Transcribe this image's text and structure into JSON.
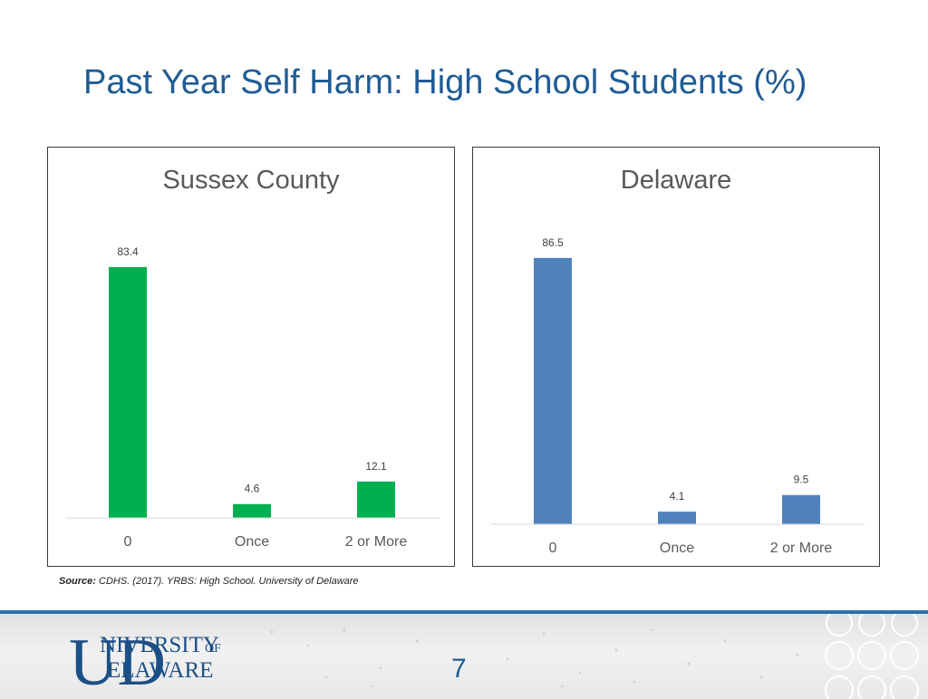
{
  "slide": {
    "title": "Past Year Self Harm: High School Students (%)",
    "source_prefix": "Source:",
    "source_text": " CDHS. (2017). YRBS: High School. University of Delaware",
    "page_number": "7",
    "logo_text_line1": "NIVERSITY",
    "logo_text_of": "OF",
    "logo_text_line2": "ELAWARE",
    "logo_mark": "UD"
  },
  "colors": {
    "title": "#1f5c94",
    "sussex_bar": "#00b050",
    "delaware_bar": "#4f81bd",
    "footer_rule": "#2b6fad"
  },
  "chart_data": [
    {
      "type": "bar",
      "title": "Sussex County",
      "categories": [
        "0",
        "Once",
        "2 or More"
      ],
      "values": [
        83.4,
        4.6,
        12.1
      ],
      "data_labels": [
        "83.4",
        "4.6",
        "12.1"
      ],
      "color": "#00b050",
      "ylim": [
        0,
        90
      ],
      "grid": false,
      "legend": "none"
    },
    {
      "type": "bar",
      "title": "Delaware",
      "categories": [
        "0",
        "Once",
        "2 or More"
      ],
      "values": [
        86.5,
        4.1,
        9.5
      ],
      "data_labels": [
        "86.5",
        "4.1",
        "9.5"
      ],
      "color": "#4f81bd",
      "ylim": [
        0,
        90
      ],
      "grid": false,
      "legend": "none"
    }
  ]
}
